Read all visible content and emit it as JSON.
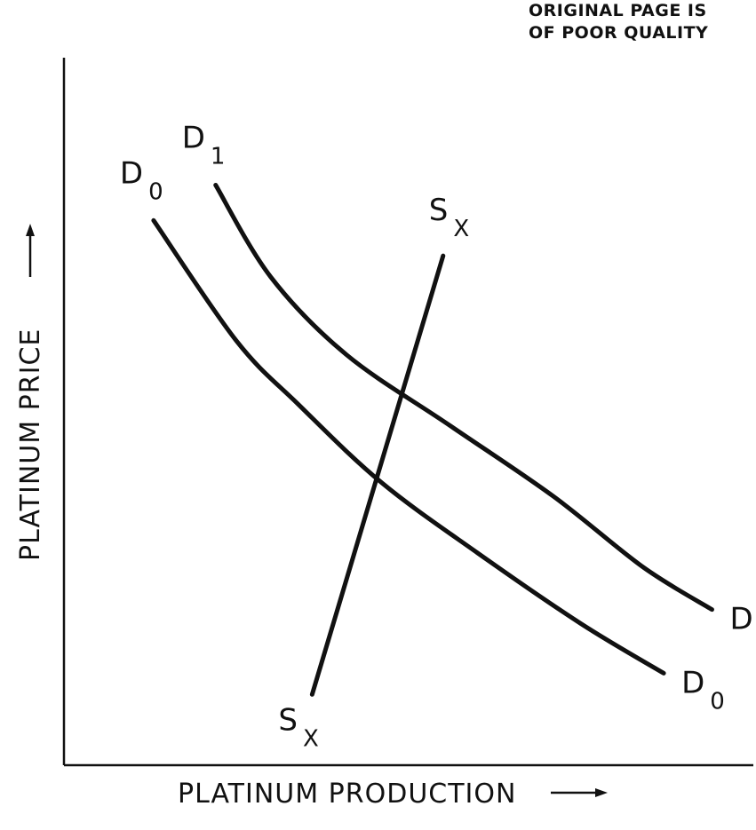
{
  "stamp": {
    "line1": "ORIGINAL PAGE IS",
    "line2": "OF POOR QUALITY"
  },
  "chart_data": {
    "type": "line",
    "title": "",
    "xlabel": "PLATINUM PRODUCTION",
    "ylabel": "PLATINUM PRICE",
    "xlim": [
      0,
      10
    ],
    "ylim": [
      0,
      10
    ],
    "grid": false,
    "legend": "none",
    "series": [
      {
        "name": "D0",
        "label_main": "D",
        "label_sub": "0",
        "x": [
          1.3,
          2.5,
          3.4,
          4.6,
          6.0,
          7.5,
          8.7
        ],
        "y": [
          7.7,
          6.0,
          5.1,
          4.0,
          3.0,
          2.0,
          1.3
        ]
      },
      {
        "name": "D1",
        "label_main": "D",
        "label_sub": "1",
        "x": [
          2.2,
          3.0,
          4.1,
          5.6,
          7.1,
          8.4,
          9.4
        ],
        "y": [
          8.2,
          6.9,
          5.8,
          4.8,
          3.8,
          2.8,
          2.2
        ]
      },
      {
        "name": "Sx",
        "label_main": "S",
        "label_sub": "X",
        "x": [
          3.6,
          5.5
        ],
        "y": [
          1.0,
          7.2
        ]
      }
    ]
  }
}
